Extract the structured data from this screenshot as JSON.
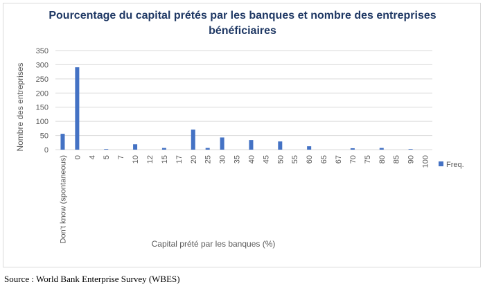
{
  "chart_data": {
    "type": "bar",
    "title": "Pourcentage du capital prétés par les banques et nombre des entreprises bénéficiaires",
    "xlabel": "Capital prété par les banques (%)",
    "ylabel": "Nombre des entreprises",
    "ylim": [
      0,
      350
    ],
    "yticks": [
      0,
      50,
      100,
      150,
      200,
      250,
      300,
      350
    ],
    "grid": true,
    "legend_position": "right",
    "colors": {
      "bar": "#4472c4",
      "title": "#1f3864",
      "grid": "#d9d9d9",
      "axis_text": "#595959"
    },
    "categories": [
      "Don't know (spontaneous)",
      "0",
      "4",
      "5",
      "7",
      "10",
      "12",
      "15",
      "17",
      "20",
      "25",
      "30",
      "35",
      "40",
      "45",
      "50",
      "55",
      "60",
      "65",
      "67",
      "70",
      "75",
      "80",
      "85",
      "90",
      "100"
    ],
    "series": [
      {
        "name": "Freq.",
        "values": [
          56,
          291,
          0,
          2,
          0,
          19,
          0,
          6,
          0,
          71,
          6,
          43,
          0,
          34,
          0,
          29,
          0,
          12,
          0,
          0,
          5,
          0,
          6,
          0,
          2,
          0
        ]
      }
    ]
  },
  "source": "Source : World Bank Enterprise Survey (WBES)"
}
